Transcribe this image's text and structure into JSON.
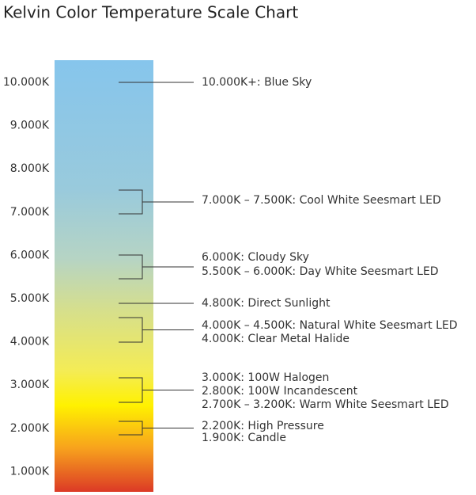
{
  "title": "Kelvin Color Temperature Scale Chart",
  "scale_labels": [
    "10.000K",
    "9.000K",
    "8.000K",
    "7.000K",
    "6.000K",
    "5.000K",
    "4.000K",
    "3.000K",
    "2.000K",
    "1.000K"
  ],
  "annotations": [
    {
      "lines": [
        "10.000K+: Blue Sky"
      ]
    },
    {
      "lines": [
        "7.000K – 7.500K: Cool White Seesmart LED"
      ]
    },
    {
      "lines": [
        "6.000K: Cloudy Sky",
        "5.500K – 6.000K: Day White Seesmart LED"
      ]
    },
    {
      "lines": [
        "4.800K: Direct Sunlight"
      ]
    },
    {
      "lines": [
        "4.000K – 4.500K: Natural White Seesmart LED",
        "4.000K: Clear Metal Halide"
      ]
    },
    {
      "lines": [
        "3.000K: 100W Halogen",
        "2.800K: 100W Incandescent",
        "2.700K – 3.200K: Warm White Seesmart LED"
      ]
    },
    {
      "lines": [
        "2.200K: High Pressure",
        "1.900K: Candle"
      ]
    }
  ]
}
